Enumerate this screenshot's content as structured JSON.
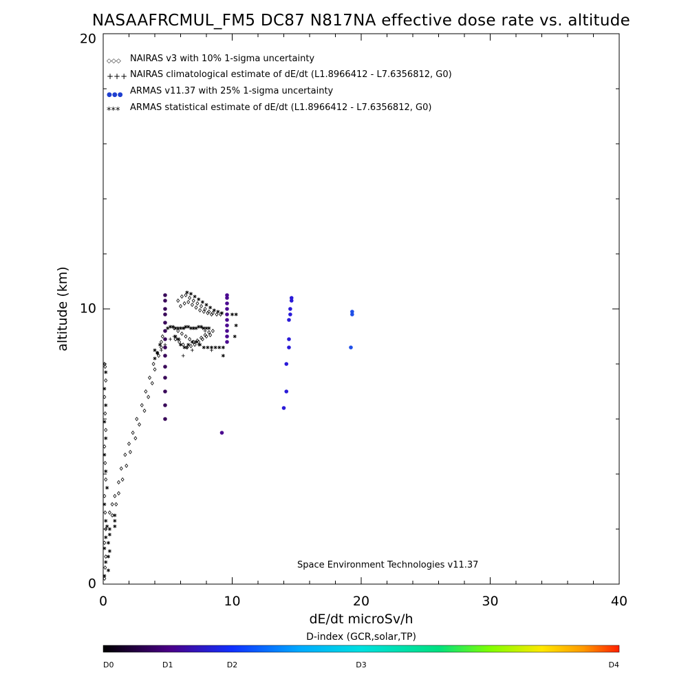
{
  "chart_data": {
    "type": "scatter",
    "title": "NASAAFRCMUL_FM5 DC87 N817NA effective dose rate vs. altitude",
    "xlabel": "dE/dt microSv/h",
    "ylabel": "altitude (km)",
    "xlim": [
      0,
      40
    ],
    "ylim": [
      0,
      20
    ],
    "xticks": [
      "0",
      "10",
      "20",
      "30",
      "40"
    ],
    "yticks": [
      "0",
      "10",
      "20"
    ],
    "grid": false,
    "legend_position": "top-left",
    "annotation": "Space Environment Technologies v11.37",
    "legend": [
      {
        "symbol": "◇◇◇",
        "label": "NAIRAS v3 with 10% 1-sigma uncertainty",
        "color": "#000000"
      },
      {
        "symbol": "+++",
        "label": "NAIRAS climatological estimate of dE/dt (L1.8966412 - L7.6356812, G0)",
        "color": "#000000"
      },
      {
        "symbol": "●●●",
        "label": "ARMAS v11.37 with 25% 1-sigma uncertainty",
        "color": "#1f3fd0"
      },
      {
        "symbol": "***",
        "label": "ARMAS statistical estimate of dE/dt (L1.8966412 - L7.6356812, G0)",
        "color": "#000000"
      }
    ],
    "colorbar": {
      "label": "D-index (GCR,solar,TP)",
      "ticks": [
        {
          "label": "D0",
          "value": 0
        },
        {
          "label": "D1",
          "value": 0.125
        },
        {
          "label": "D2",
          "value": 0.25
        },
        {
          "label": "D3",
          "value": 0.5
        },
        {
          "label": "D4",
          "value": 1.0
        }
      ]
    },
    "series": [
      {
        "name": "NAIRAS v3 with 10% 1-sigma uncertainty",
        "marker": "diamond",
        "points": [
          [
            0.1,
            0.2
          ],
          [
            0.15,
            0.6
          ],
          [
            0.2,
            1.0
          ],
          [
            0.1,
            1.5
          ],
          [
            0.2,
            2.0
          ],
          [
            0.15,
            2.6
          ],
          [
            0.1,
            3.2
          ],
          [
            0.2,
            3.8
          ],
          [
            0.15,
            4.4
          ],
          [
            0.1,
            5.0
          ],
          [
            0.2,
            5.6
          ],
          [
            0.15,
            6.2
          ],
          [
            0.1,
            6.8
          ],
          [
            0.2,
            7.4
          ],
          [
            0.15,
            7.9
          ],
          [
            0.1,
            8.0
          ],
          [
            0.5,
            2.6
          ],
          [
            0.7,
            2.9
          ],
          [
            0.9,
            3.2
          ],
          [
            1.2,
            3.7
          ],
          [
            1.4,
            4.2
          ],
          [
            1.7,
            4.7
          ],
          [
            2.0,
            5.1
          ],
          [
            2.3,
            5.5
          ],
          [
            2.6,
            6.0
          ],
          [
            3.0,
            6.5
          ],
          [
            3.3,
            7.0
          ],
          [
            3.6,
            7.5
          ],
          [
            3.9,
            8.0
          ],
          [
            4.2,
            8.4
          ],
          [
            4.5,
            8.8
          ],
          [
            4.6,
            9.0
          ],
          [
            0.7,
            2.5
          ],
          [
            1.0,
            2.9
          ],
          [
            1.2,
            3.3
          ],
          [
            1.5,
            3.8
          ],
          [
            1.8,
            4.3
          ],
          [
            2.1,
            4.8
          ],
          [
            2.5,
            5.3
          ],
          [
            2.8,
            5.8
          ],
          [
            3.2,
            6.3
          ],
          [
            3.5,
            6.8
          ],
          [
            3.8,
            7.3
          ],
          [
            4.0,
            7.8
          ],
          [
            4.3,
            8.3
          ],
          [
            4.5,
            8.6
          ],
          [
            5.5,
            9.3
          ],
          [
            5.8,
            9.2
          ],
          [
            6.1,
            9.1
          ],
          [
            6.4,
            9.0
          ],
          [
            6.7,
            8.9
          ],
          [
            7.0,
            8.8
          ],
          [
            7.3,
            8.85
          ],
          [
            7.6,
            8.95
          ],
          [
            7.9,
            9.05
          ],
          [
            8.2,
            9.15
          ],
          [
            8.5,
            9.2
          ],
          [
            5.6,
            8.9
          ],
          [
            5.9,
            8.8
          ],
          [
            6.2,
            8.7
          ],
          [
            6.5,
            8.6
          ],
          [
            6.8,
            8.65
          ],
          [
            7.1,
            8.7
          ],
          [
            7.4,
            8.8
          ],
          [
            7.7,
            8.9
          ],
          [
            8.0,
            9.0
          ],
          [
            8.3,
            9.05
          ],
          [
            5.8,
            10.3
          ],
          [
            6.1,
            10.45
          ],
          [
            6.4,
            10.5
          ],
          [
            6.7,
            10.4
          ],
          [
            7.0,
            10.3
          ],
          [
            7.3,
            10.2
          ],
          [
            7.6,
            10.1
          ],
          [
            7.9,
            10.0
          ],
          [
            8.2,
            9.9
          ],
          [
            8.5,
            9.85
          ],
          [
            8.8,
            9.8
          ],
          [
            9.1,
            9.8
          ],
          [
            6.0,
            10.1
          ],
          [
            6.3,
            10.2
          ],
          [
            6.6,
            10.25
          ],
          [
            6.9,
            10.15
          ],
          [
            7.2,
            10.05
          ],
          [
            7.5,
            9.95
          ],
          [
            7.8,
            9.9
          ],
          [
            8.1,
            9.85
          ],
          [
            8.4,
            9.8
          ]
        ]
      },
      {
        "name": "NAIRAS climatological estimate of dE/dt (L1.8966412 - L7.6356812, G0)",
        "marker": "plus",
        "points": [
          [
            4.5,
            8.5
          ],
          [
            4.8,
            8.7
          ],
          [
            5.2,
            8.9
          ],
          [
            5.5,
            9.0
          ],
          [
            5.9,
            8.9
          ],
          [
            6.2,
            8.3
          ],
          [
            6.5,
            8.6
          ],
          [
            6.9,
            8.5
          ],
          [
            7.4,
            8.7
          ],
          [
            7.9,
            9.2
          ],
          [
            8.4,
            8.5
          ],
          [
            6.3,
            9.3
          ],
          [
            7.0,
            9.3
          ],
          [
            7.7,
            9.3
          ]
        ]
      },
      {
        "name": "ARMAS v11.37 with 25% 1-sigma uncertainty",
        "marker": "filled-circle",
        "points": [
          [
            4.8,
            6.0
          ],
          [
            4.8,
            6.5
          ],
          [
            4.8,
            7.0
          ],
          [
            4.8,
            7.5
          ],
          [
            4.8,
            7.9
          ],
          [
            4.8,
            8.3
          ],
          [
            4.8,
            8.6
          ],
          [
            4.8,
            8.9
          ],
          [
            4.8,
            9.2
          ],
          [
            4.8,
            9.5
          ],
          [
            4.8,
            9.8
          ],
          [
            4.8,
            10.0
          ],
          [
            4.8,
            10.3
          ],
          [
            4.8,
            10.5
          ],
          [
            9.2,
            5.5
          ],
          [
            9.6,
            8.8
          ],
          [
            9.6,
            9.0
          ],
          [
            9.6,
            9.2
          ],
          [
            9.6,
            9.4
          ],
          [
            9.6,
            9.6
          ],
          [
            9.6,
            9.8
          ],
          [
            9.6,
            10.0
          ],
          [
            9.6,
            10.2
          ],
          [
            9.6,
            10.4
          ],
          [
            9.6,
            10.5
          ],
          [
            14.0,
            6.4
          ],
          [
            14.2,
            7.0
          ],
          [
            14.2,
            8.0
          ],
          [
            14.4,
            8.6
          ],
          [
            14.4,
            8.9
          ],
          [
            14.4,
            9.6
          ],
          [
            14.5,
            9.8
          ],
          [
            14.5,
            10.0
          ],
          [
            14.6,
            10.3
          ],
          [
            14.6,
            10.4
          ],
          [
            19.2,
            8.6
          ],
          [
            19.3,
            9.8
          ],
          [
            19.3,
            9.9
          ]
        ]
      },
      {
        "name": "ARMAS statistical estimate of dE/dt (L1.8966412 - L7.6356812, G0)",
        "marker": "asterisk",
        "points": [
          [
            0.1,
            0.3
          ],
          [
            0.2,
            0.8
          ],
          [
            0.1,
            1.3
          ],
          [
            0.2,
            1.7
          ],
          [
            0.3,
            2.1
          ],
          [
            0.2,
            2.3
          ],
          [
            0.1,
            2.9
          ],
          [
            0.3,
            3.5
          ],
          [
            0.2,
            4.1
          ],
          [
            0.1,
            4.7
          ],
          [
            0.2,
            5.3
          ],
          [
            0.1,
            5.9
          ],
          [
            0.2,
            6.5
          ],
          [
            0.1,
            7.1
          ],
          [
            0.2,
            7.7
          ],
          [
            0.4,
            0.5
          ],
          [
            0.4,
            1.0
          ],
          [
            0.5,
            1.2
          ],
          [
            0.4,
            1.5
          ],
          [
            0.5,
            1.8
          ],
          [
            0.5,
            2.0
          ],
          [
            0.9,
            2.1
          ],
          [
            0.9,
            2.3
          ],
          [
            0.9,
            2.5
          ],
          [
            4.0,
            8.2
          ],
          [
            4.2,
            8.4
          ],
          [
            4.4,
            8.7
          ],
          [
            4.0,
            8.5
          ],
          [
            5.0,
            9.3
          ],
          [
            5.2,
            9.35
          ],
          [
            5.4,
            9.35
          ],
          [
            5.6,
            9.3
          ],
          [
            5.8,
            9.3
          ],
          [
            6.0,
            9.3
          ],
          [
            6.2,
            9.3
          ],
          [
            6.4,
            9.35
          ],
          [
            6.6,
            9.35
          ],
          [
            6.8,
            9.3
          ],
          [
            7.0,
            9.3
          ],
          [
            7.2,
            9.3
          ],
          [
            7.4,
            9.35
          ],
          [
            7.6,
            9.35
          ],
          [
            7.8,
            9.3
          ],
          [
            8.0,
            9.3
          ],
          [
            8.2,
            9.3
          ],
          [
            5.6,
            9.0
          ],
          [
            5.8,
            8.9
          ],
          [
            6.0,
            8.7
          ],
          [
            6.3,
            8.6
          ],
          [
            6.6,
            8.7
          ],
          [
            6.9,
            8.8
          ],
          [
            7.2,
            8.8
          ],
          [
            7.5,
            8.7
          ],
          [
            7.8,
            8.6
          ],
          [
            8.1,
            8.6
          ],
          [
            8.4,
            8.6
          ],
          [
            8.7,
            8.6
          ],
          [
            9.0,
            8.6
          ],
          [
            9.3,
            8.6
          ],
          [
            6.5,
            10.6
          ],
          [
            6.8,
            10.55
          ],
          [
            7.1,
            10.45
          ],
          [
            7.4,
            10.35
          ],
          [
            7.7,
            10.25
          ],
          [
            8.0,
            10.15
          ],
          [
            8.3,
            10.05
          ],
          [
            8.6,
            9.95
          ],
          [
            8.9,
            9.9
          ],
          [
            9.2,
            9.85
          ],
          [
            10.0,
            9.8
          ],
          [
            10.3,
            9.8
          ],
          [
            9.3,
            8.3
          ],
          [
            10.3,
            9.4
          ],
          [
            10.2,
            9.0
          ]
        ]
      }
    ]
  }
}
